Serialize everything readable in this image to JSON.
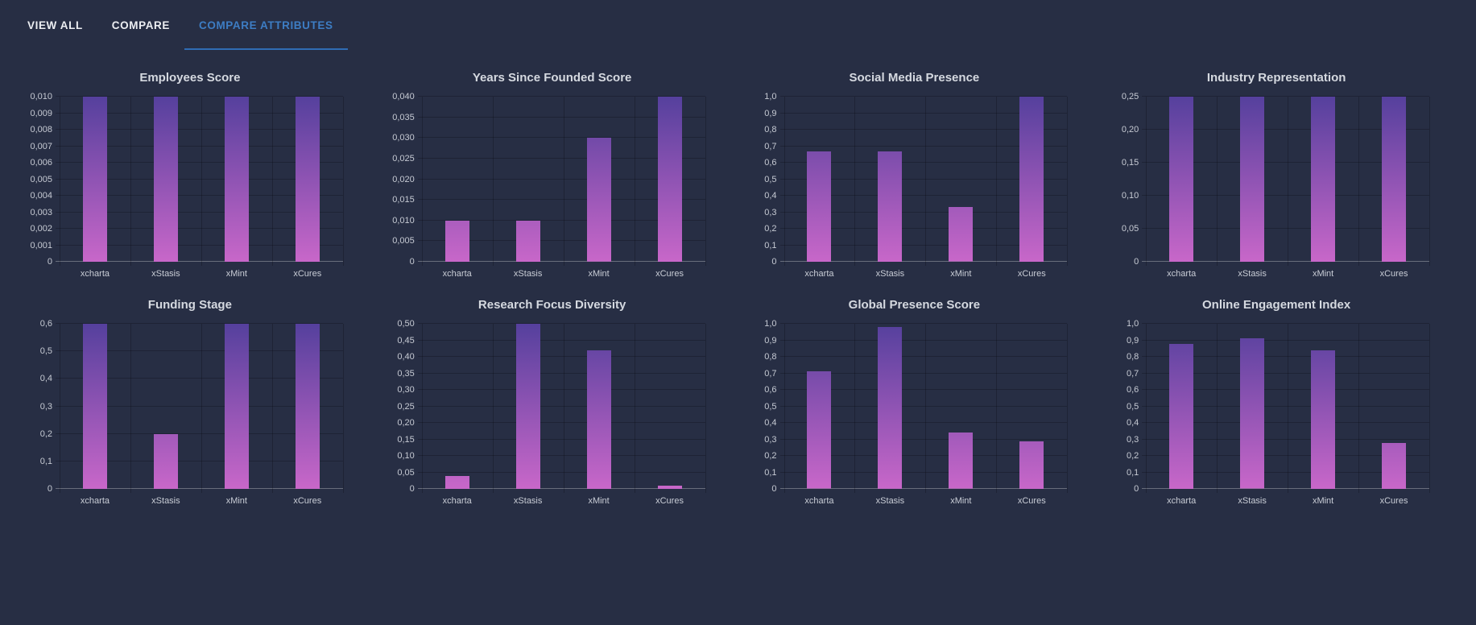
{
  "tabs": {
    "items": [
      {
        "label": "VIEW ALL",
        "active": false
      },
      {
        "label": "COMPARE",
        "active": false
      },
      {
        "label": "COMPARE ATTRIBUTES",
        "active": true
      }
    ]
  },
  "colors": {
    "background": "#272e44",
    "active_tab_text": "#3d7dc4",
    "tab_indicator": "#2f6cb4",
    "inactive_tab_text": "#eceef2",
    "title_text": "#d5d9e0",
    "tick_text": "#c6cad3",
    "bar_gradient_top": "#55409d",
    "bar_gradient_bottom": "#c867c9"
  },
  "chart_data": [
    {
      "type": "bar",
      "title": "Employees Score",
      "categories": [
        "xcharta",
        "xStasis",
        "xMint",
        "xCures"
      ],
      "values": [
        0.01,
        0.01,
        0.01,
        0.01
      ],
      "ylim": [
        0,
        0.01
      ],
      "ytick_labels": [
        "0",
        "0,001",
        "0,002",
        "0,003",
        "0,004",
        "0,005",
        "0,006",
        "0,007",
        "0,008",
        "0,009",
        "0,010"
      ],
      "grid": true,
      "legend": false
    },
    {
      "type": "bar",
      "title": "Years Since Founded Score",
      "categories": [
        "xcharta",
        "xStasis",
        "xMint",
        "xCures"
      ],
      "values": [
        0.01,
        0.01,
        0.03,
        0.04
      ],
      "ylim": [
        0,
        0.04
      ],
      "ytick_labels": [
        "0",
        "0,005",
        "0,010",
        "0,015",
        "0,020",
        "0,025",
        "0,030",
        "0,035",
        "0,040"
      ],
      "grid": true,
      "legend": false
    },
    {
      "type": "bar",
      "title": "Social Media Presence",
      "categories": [
        "xcharta",
        "xStasis",
        "xMint",
        "xCures"
      ],
      "values": [
        0.67,
        0.67,
        0.33,
        1.0
      ],
      "ylim": [
        0,
        1.0
      ],
      "ytick_labels": [
        "0",
        "0,1",
        "0,2",
        "0,3",
        "0,4",
        "0,5",
        "0,6",
        "0,7",
        "0,8",
        "0,9",
        "1,0"
      ],
      "grid": true,
      "legend": false
    },
    {
      "type": "bar",
      "title": "Industry Representation",
      "categories": [
        "xcharta",
        "xStasis",
        "xMint",
        "xCures"
      ],
      "values": [
        0.25,
        0.25,
        0.25,
        0.25
      ],
      "ylim": [
        0,
        0.25
      ],
      "ytick_labels": [
        "0",
        "0,05",
        "0,10",
        "0,15",
        "0,20",
        "0,25"
      ],
      "grid": true,
      "legend": false
    },
    {
      "type": "bar",
      "title": "Funding Stage",
      "categories": [
        "xcharta",
        "xStasis",
        "xMint",
        "xCures"
      ],
      "values": [
        0.6,
        0.2,
        0.6,
        0.6
      ],
      "ylim": [
        0,
        0.6
      ],
      "ytick_labels": [
        "0",
        "0,1",
        "0,2",
        "0,3",
        "0,4",
        "0,5",
        "0,6"
      ],
      "grid": true,
      "legend": false
    },
    {
      "type": "bar",
      "title": "Research Focus Diversity",
      "categories": [
        "xcharta",
        "xStasis",
        "xMint",
        "xCures"
      ],
      "values": [
        0.04,
        0.5,
        0.42,
        0.01
      ],
      "ylim": [
        0,
        0.5
      ],
      "ytick_labels": [
        "0",
        "0,05",
        "0,10",
        "0,15",
        "0,20",
        "0,25",
        "0,30",
        "0,35",
        "0,40",
        "0,45",
        "0,50"
      ],
      "grid": true,
      "legend": false
    },
    {
      "type": "bar",
      "title": "Global Presence Score",
      "categories": [
        "xcharta",
        "xStasis",
        "xMint",
        "xCures"
      ],
      "values": [
        0.71,
        0.98,
        0.34,
        0.29
      ],
      "ylim": [
        0,
        1.0
      ],
      "ytick_labels": [
        "0",
        "0,1",
        "0,2",
        "0,3",
        "0,4",
        "0,5",
        "0,6",
        "0,7",
        "0,8",
        "0,9",
        "1,0"
      ],
      "grid": true,
      "legend": false
    },
    {
      "type": "bar",
      "title": "Online Engagement Index",
      "categories": [
        "xcharta",
        "xStasis",
        "xMint",
        "xCures"
      ],
      "values": [
        0.88,
        0.91,
        0.84,
        0.28
      ],
      "ylim": [
        0,
        1.0
      ],
      "ytick_labels": [
        "0",
        "0,1",
        "0,2",
        "0,3",
        "0,4",
        "0,5",
        "0,6",
        "0,7",
        "0,8",
        "0,9",
        "1,0"
      ],
      "grid": true,
      "legend": false
    }
  ]
}
